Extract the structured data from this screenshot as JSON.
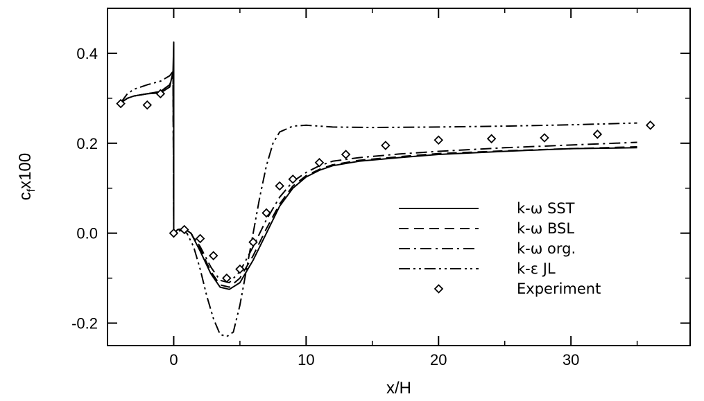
{
  "chart_data": {
    "type": "line",
    "title": "",
    "xlabel": "x/H",
    "ylabel": "c_f x100",
    "ylabel_main": "c",
    "ylabel_sub": "f",
    "ylabel_rest": "x100",
    "xlim": [
      -5,
      39
    ],
    "ylim": [
      -0.25,
      0.5
    ],
    "x_ticks": [
      0,
      10,
      20,
      30
    ],
    "y_ticks": [
      -0.2,
      0.0,
      0.2,
      0.4
    ],
    "y_tick_labels": [
      "-0.2",
      "0.0",
      "0.2",
      "0.4"
    ],
    "x_tick_labels": [
      "0",
      "10",
      "20",
      "30"
    ],
    "grid": false,
    "legend_position": "lower-right",
    "series": [
      {
        "name": "k-ω SST",
        "dash": "solid",
        "points": [
          [
            -4,
            0.29
          ],
          [
            -3.5,
            0.3
          ],
          [
            -3,
            0.305
          ],
          [
            -2,
            0.31
          ],
          [
            -1,
            0.312
          ],
          [
            -0.3,
            0.325
          ],
          [
            -0.05,
            0.36
          ],
          [
            0,
            0.425
          ],
          [
            0,
            0.0
          ],
          [
            0.3,
            0.008
          ],
          [
            0.8,
            0.01
          ],
          [
            1.3,
            0.0
          ],
          [
            2,
            -0.04
          ],
          [
            2.8,
            -0.09
          ],
          [
            3.5,
            -0.12
          ],
          [
            4.2,
            -0.125
          ],
          [
            5,
            -0.11
          ],
          [
            6,
            -0.06
          ],
          [
            7,
            0.0
          ],
          [
            8,
            0.06
          ],
          [
            9,
            0.1
          ],
          [
            10,
            0.125
          ],
          [
            11,
            0.14
          ],
          [
            12,
            0.15
          ],
          [
            14,
            0.16
          ],
          [
            17,
            0.168
          ],
          [
            20,
            0.175
          ],
          [
            25,
            0.182
          ],
          [
            30,
            0.188
          ],
          [
            35,
            0.19
          ]
        ]
      },
      {
        "name": "k-ω BSL",
        "dash": "dashed",
        "points": [
          [
            -4,
            0.29
          ],
          [
            -3.5,
            0.3
          ],
          [
            -3,
            0.305
          ],
          [
            -2,
            0.31
          ],
          [
            -1,
            0.315
          ],
          [
            -0.3,
            0.33
          ],
          [
            -0.05,
            0.355
          ],
          [
            0,
            0.0
          ],
          [
            0.3,
            0.008
          ],
          [
            0.8,
            0.01
          ],
          [
            1.3,
            0.0
          ],
          [
            2,
            -0.035
          ],
          [
            2.8,
            -0.085
          ],
          [
            3.5,
            -0.115
          ],
          [
            4.2,
            -0.12
          ],
          [
            5,
            -0.1
          ],
          [
            6,
            -0.05
          ],
          [
            7,
            0.01
          ],
          [
            8,
            0.065
          ],
          [
            9,
            0.105
          ],
          [
            10,
            0.128
          ],
          [
            11,
            0.142
          ],
          [
            12,
            0.152
          ],
          [
            14,
            0.162
          ],
          [
            17,
            0.17
          ],
          [
            20,
            0.177
          ],
          [
            25,
            0.183
          ],
          [
            30,
            0.188
          ],
          [
            35,
            0.192
          ]
        ]
      },
      {
        "name": "k-ω org.",
        "dash": "dashdot",
        "points": [
          [
            -4,
            0.29
          ],
          [
            -3.5,
            0.3
          ],
          [
            -3,
            0.305
          ],
          [
            -2,
            0.31
          ],
          [
            -1,
            0.315
          ],
          [
            -0.3,
            0.33
          ],
          [
            -0.05,
            0.355
          ],
          [
            0,
            0.0
          ],
          [
            0.3,
            0.008
          ],
          [
            0.8,
            0.01
          ],
          [
            1.3,
            0.0
          ],
          [
            2,
            -0.03
          ],
          [
            2.8,
            -0.075
          ],
          [
            3.5,
            -0.105
          ],
          [
            4.2,
            -0.11
          ],
          [
            5,
            -0.085
          ],
          [
            6,
            -0.03
          ],
          [
            7,
            0.03
          ],
          [
            8,
            0.08
          ],
          [
            9,
            0.115
          ],
          [
            10,
            0.135
          ],
          [
            11,
            0.15
          ],
          [
            12,
            0.16
          ],
          [
            14,
            0.168
          ],
          [
            17,
            0.176
          ],
          [
            20,
            0.182
          ],
          [
            25,
            0.19
          ],
          [
            30,
            0.196
          ],
          [
            35,
            0.202
          ]
        ]
      },
      {
        "name": "k-ε JL",
        "dash": "dashdotdot",
        "points": [
          [
            -4,
            0.29
          ],
          [
            -3.5,
            0.31
          ],
          [
            -3,
            0.32
          ],
          [
            -2,
            0.33
          ],
          [
            -1,
            0.338
          ],
          [
            -0.3,
            0.35
          ],
          [
            -0.05,
            0.36
          ],
          [
            0,
            0.0
          ],
          [
            0.5,
            0.006
          ],
          [
            1,
            0.0
          ],
          [
            1.5,
            -0.03
          ],
          [
            2,
            -0.08
          ],
          [
            2.5,
            -0.14
          ],
          [
            3,
            -0.19
          ],
          [
            3.5,
            -0.225
          ],
          [
            4,
            -0.23
          ],
          [
            4.5,
            -0.22
          ],
          [
            5,
            -0.16
          ],
          [
            5.5,
            -0.08
          ],
          [
            6,
            0.0
          ],
          [
            6.5,
            0.08
          ],
          [
            7,
            0.15
          ],
          [
            7.5,
            0.2
          ],
          [
            8,
            0.225
          ],
          [
            9,
            0.238
          ],
          [
            10,
            0.24
          ],
          [
            12,
            0.236
          ],
          [
            15,
            0.235
          ],
          [
            20,
            0.236
          ],
          [
            25,
            0.238
          ],
          [
            30,
            0.241
          ],
          [
            35,
            0.245
          ]
        ]
      }
    ],
    "experiment": {
      "name": "Experiment",
      "points": [
        [
          -4,
          0.288
        ],
        [
          -2,
          0.285
        ],
        [
          -1,
          0.31
        ],
        [
          0,
          0.0
        ],
        [
          0.8,
          0.008
        ],
        [
          2,
          -0.012
        ],
        [
          3,
          -0.05
        ],
        [
          4,
          -0.1
        ],
        [
          5,
          -0.08
        ],
        [
          6,
          -0.02
        ],
        [
          7,
          0.045
        ],
        [
          8,
          0.105
        ],
        [
          9,
          0.12
        ],
        [
          11,
          0.157
        ],
        [
          13,
          0.175
        ],
        [
          16,
          0.195
        ],
        [
          20,
          0.207
        ],
        [
          24,
          0.21
        ],
        [
          28,
          0.212
        ],
        [
          32,
          0.22
        ],
        [
          36,
          0.24
        ]
      ]
    }
  }
}
